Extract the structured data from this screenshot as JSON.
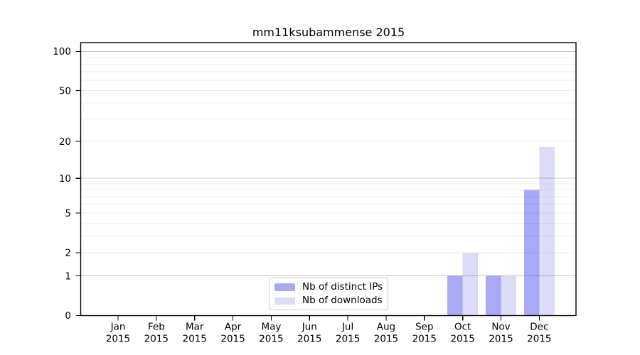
{
  "figure": {
    "background": "#ffffff"
  },
  "chart_data": {
    "type": "bar",
    "title": "mm11ksubammense 2015",
    "x_months": [
      "Jan",
      "Feb",
      "Mar",
      "Apr",
      "May",
      "Jun",
      "Jul",
      "Aug",
      "Sep",
      "Oct",
      "Nov",
      "Dec"
    ],
    "x_year_label": "2015",
    "series": [
      {
        "name": "Nb of distinct IPs",
        "color": "#a9a9f6",
        "values": [
          0,
          0,
          0,
          0,
          0,
          0,
          0,
          0,
          0,
          1,
          1,
          8
        ]
      },
      {
        "name": "Nb of downloads",
        "color": "#dcdcf8",
        "values": [
          0,
          0,
          0,
          0,
          0,
          0,
          0,
          0,
          0,
          2,
          1,
          18
        ]
      }
    ],
    "y_axis": {
      "scale": "log10(1+y)",
      "ticks": [
        0,
        1,
        2,
        5,
        10,
        20,
        50,
        100
      ],
      "max": 117,
      "major_gridlines": [
        1,
        10,
        100
      ],
      "minor_gridlines": [
        2,
        3,
        4,
        5,
        6,
        7,
        8,
        9,
        20,
        30,
        40,
        50,
        60,
        70,
        80,
        90
      ]
    },
    "legend": {
      "position": "lower-center-inside"
    },
    "colors": {
      "axis": "#000000",
      "text": "#000000",
      "major_grid": "#c8c8c8",
      "minor_grid": "#ececec",
      "legend_border": "#cccccc"
    }
  }
}
